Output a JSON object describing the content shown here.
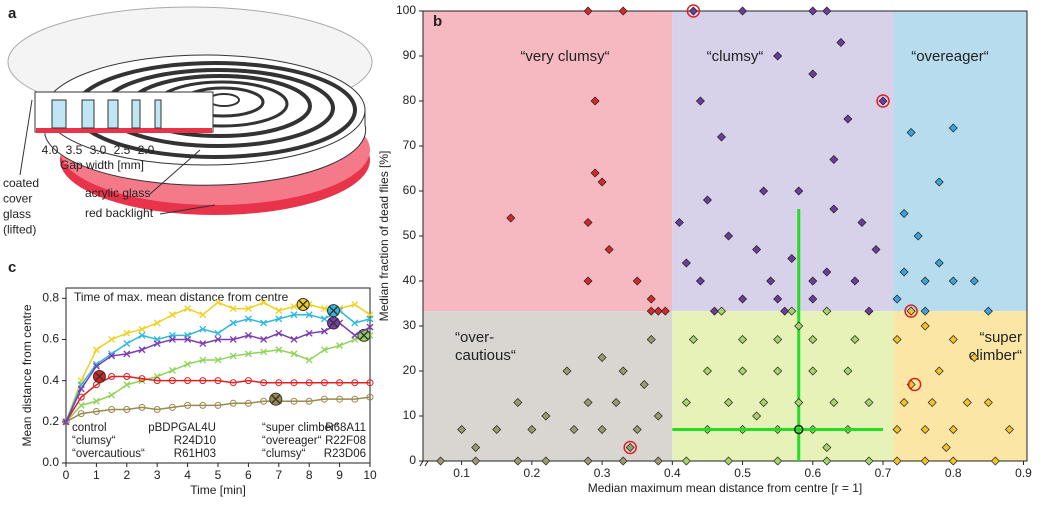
{
  "panel_a": {
    "label": "a",
    "gap_labels": [
      "4.0",
      "3.5",
      "3.0",
      "2.5",
      "2.0"
    ],
    "gap_axis": "Gap width [mm]",
    "cover_label": [
      "coated",
      "cover",
      "glass",
      "(lifted)"
    ],
    "acrylic_label": "acrylic glass",
    "backlight_label": "red backlight"
  },
  "chart_data": [
    {
      "type": "scatter",
      "panel": "b",
      "xlabel": "Median maximum mean distance from centre [r = 1]",
      "ylabel": "Median fraction of dead flies [%]",
      "xlim": [
        0.045,
        0.905
      ],
      "ylim": [
        0,
        100
      ],
      "xticks": [
        0.1,
        0.2,
        0.3,
        0.4,
        0.5,
        0.6,
        0.7,
        0.8,
        0.9
      ],
      "yticks": [
        0,
        10,
        20,
        30,
        40,
        50,
        60,
        70,
        80,
        90,
        100
      ],
      "regions": [
        {
          "label": [
            "“very clumsy“"
          ],
          "x": [
            0.045,
            0.4
          ],
          "y": [
            33.3,
            100
          ],
          "color": "#f6b9c1"
        },
        {
          "label": [
            "“clumsy“"
          ],
          "x": [
            0.4,
            0.715
          ],
          "y": [
            33.3,
            100
          ],
          "color": "#d7d1ea"
        },
        {
          "label": [
            "“overeager“"
          ],
          "x": [
            0.715,
            0.905
          ],
          "y": [
            33.3,
            100
          ],
          "color": "#b6dcee"
        },
        {
          "label": [
            "“over-",
            "cautious“"
          ],
          "x": [
            0.045,
            0.4
          ],
          "y": [
            0,
            33.3
          ],
          "color": "#d9d6d2"
        },
        {
          "label": [],
          "x": [
            0.4,
            0.715
          ],
          "y": [
            0,
            33.3
          ],
          "color": "#e6f2b8"
        },
        {
          "label": [
            "“super",
            "climber“"
          ],
          "x": [
            0.715,
            0.905
          ],
          "y": [
            0,
            33.3
          ],
          "color": "#fbe6a6"
        }
      ],
      "series": [
        {
          "color": "#d62728",
          "x": [
            0.17,
            0.28,
            0.33,
            0.29,
            0.29,
            0.28,
            0.28,
            0.3,
            0.31,
            0.35,
            0.37,
            0.38,
            0.39,
            0.37
          ],
          "values": [
            54,
            100,
            100,
            80,
            64,
            53,
            40,
            62,
            47,
            40,
            36,
            33.3,
            33.3,
            33.3
          ]
        },
        {
          "color": "#6a3d9a",
          "x": [
            0.43,
            0.44,
            0.5,
            0.6,
            0.62,
            0.64,
            0.55,
            0.6,
            0.7,
            0.65,
            0.47,
            0.63,
            0.58,
            0.53,
            0.45,
            0.41,
            0.48,
            0.52,
            0.57,
            0.62,
            0.66,
            0.44,
            0.5,
            0.55,
            0.6,
            0.68,
            0.46,
            0.56,
            0.63,
            0.69,
            0.42,
            0.54,
            0.6,
            0.67
          ],
          "values": [
            100,
            80,
            100,
            100,
            100,
            93,
            90,
            86,
            80,
            76,
            72,
            67,
            60,
            60,
            58,
            53,
            50,
            47,
            45,
            42,
            40,
            40,
            36,
            36,
            36,
            33.3,
            33.3,
            33.3,
            56,
            47,
            44,
            40,
            40,
            53
          ]
        },
        {
          "color": "#3ba3d9",
          "x": [
            0.74,
            0.8,
            0.73,
            0.75,
            0.78,
            0.73,
            0.76,
            0.8,
            0.83,
            0.72,
            0.74,
            0.76,
            0.78,
            0.85
          ],
          "values": [
            73,
            74,
            55,
            50,
            44,
            42,
            40,
            40,
            40,
            36,
            33.3,
            33.3,
            62,
            33.3
          ]
        },
        {
          "color": "#9c9a6c",
          "x": [
            0.07,
            0.12,
            0.18,
            0.22,
            0.28,
            0.33,
            0.38,
            0.1,
            0.15,
            0.2,
            0.26,
            0.3,
            0.35,
            0.22,
            0.28,
            0.32,
            0.36,
            0.25,
            0.33,
            0.37,
            0.34,
            0.12,
            0.3,
            0.38,
            0.18
          ],
          "values": [
            0,
            0,
            0,
            0,
            0,
            0,
            0,
            7,
            7,
            7,
            7,
            7,
            7,
            10,
            13,
            13,
            17,
            20,
            20,
            27,
            3,
            3,
            23,
            10,
            13
          ]
        },
        {
          "color": "#a6d46c",
          "x": [
            0.42,
            0.48,
            0.55,
            0.62,
            0.68,
            0.45,
            0.5,
            0.55,
            0.6,
            0.65,
            0.42,
            0.48,
            0.53,
            0.58,
            0.63,
            0.68,
            0.45,
            0.5,
            0.55,
            0.6,
            0.65,
            0.5,
            0.55,
            0.6,
            0.66,
            0.47,
            0.57,
            0.62,
            0.52,
            0.62,
            0.43,
            0.58
          ],
          "values": [
            0,
            0,
            0,
            0,
            0,
            7,
            7,
            7,
            7,
            7,
            13,
            13,
            13,
            13,
            13,
            13,
            20,
            20,
            20,
            20,
            20,
            27,
            27,
            27,
            27,
            33.3,
            33.3,
            33.3,
            10,
            3,
            27,
            30
          ]
        },
        {
          "color": "#f2c12e",
          "x": [
            0.72,
            0.76,
            0.8,
            0.86,
            0.72,
            0.76,
            0.8,
            0.73,
            0.77,
            0.82,
            0.74,
            0.78,
            0.83,
            0.72,
            0.76,
            0.8,
            0.85,
            0.88,
            0.74,
            0.79
          ],
          "values": [
            0,
            0,
            0,
            0,
            7,
            7,
            7,
            13,
            13,
            13,
            17,
            20,
            23,
            27,
            30,
            27,
            13,
            7,
            33.3,
            3
          ]
        }
      ],
      "highlighted": {
        "color": "#e02020",
        "x": [
          0.43,
          0.7,
          0.74,
          0.745,
          0.34
        ],
        "values": [
          100,
          80,
          33.3,
          17,
          3
        ]
      },
      "median": {
        "color": "#22dd22",
        "x": 0.58,
        "y": 7,
        "x_span": [
          0.4,
          0.7
        ],
        "y_span": [
          0,
          56
        ]
      }
    },
    {
      "type": "line",
      "panel": "c",
      "title": "Time of max. mean distance from centre",
      "xlabel": "Time [min]",
      "ylabel": "Mean distance from centre",
      "xlim": [
        0,
        10
      ],
      "ylim": [
        0,
        0.85
      ],
      "xticks": [
        0,
        1,
        2,
        3,
        4,
        5,
        6,
        7,
        8,
        9,
        10
      ],
      "yticks": [
        {
          "value": 0,
          "label": "0.0"
        },
        0.2,
        0.4,
        0.6,
        0.8
      ],
      "x": [
        0,
        0.5,
        1,
        1.5,
        2,
        2.5,
        3,
        3.5,
        4,
        4.5,
        5,
        5.5,
        6,
        6.5,
        7,
        7.5,
        8,
        8.5,
        9,
        9.5,
        10
      ],
      "series": [
        {
          "name": "control",
          "line": "pBDPGAL4U",
          "color": "#8fd35a",
          "marker": "x",
          "peak": [
            9.8,
            0.62
          ],
          "values": [
            0.2,
            0.28,
            0.3,
            0.33,
            0.38,
            0.4,
            0.42,
            0.45,
            0.48,
            0.5,
            0.5,
            0.52,
            0.53,
            0.54,
            0.55,
            0.53,
            0.5,
            0.55,
            0.57,
            0.6,
            0.62
          ]
        },
        {
          "name": "“clumsy“",
          "line": "R24D10",
          "color": "#e02020",
          "marker": "o",
          "peak": [
            1.1,
            0.42
          ],
          "values": [
            0.2,
            0.32,
            0.38,
            0.42,
            0.42,
            0.41,
            0.4,
            0.4,
            0.4,
            0.4,
            0.4,
            0.39,
            0.4,
            0.39,
            0.39,
            0.39,
            0.39,
            0.39,
            0.39,
            0.39,
            0.39
          ]
        },
        {
          "name": "“overcautious“",
          "line": "R61H03",
          "color": "#9a8a50",
          "marker": "o",
          "peak": [
            6.9,
            0.31
          ],
          "values": [
            0.2,
            0.24,
            0.25,
            0.26,
            0.26,
            0.27,
            0.26,
            0.27,
            0.28,
            0.28,
            0.28,
            0.29,
            0.29,
            0.3,
            0.3,
            0.3,
            0.3,
            0.31,
            0.31,
            0.31,
            0.32
          ]
        },
        {
          "name": "“super climber“",
          "line": "R68A11",
          "color": "#f0d020",
          "marker": "x",
          "peak": [
            7.8,
            0.77
          ],
          "values": [
            0.2,
            0.4,
            0.55,
            0.6,
            0.63,
            0.65,
            0.68,
            0.72,
            0.75,
            0.72,
            0.78,
            0.75,
            0.75,
            0.78,
            0.74,
            0.76,
            0.77,
            0.75,
            0.75,
            0.77,
            0.72
          ]
        },
        {
          "name": "“overeager“",
          "line": "R22F08",
          "color": "#30b8e0",
          "marker": "x",
          "peak": [
            8.8,
            0.74
          ],
          "values": [
            0.2,
            0.38,
            0.48,
            0.53,
            0.58,
            0.62,
            0.6,
            0.62,
            0.62,
            0.65,
            0.63,
            0.68,
            0.7,
            0.68,
            0.7,
            0.72,
            0.72,
            0.7,
            0.74,
            0.68,
            0.7
          ]
        },
        {
          "name": "“clumsy“",
          "line": "R23D06",
          "color": "#7a3cb0",
          "marker": "x",
          "peak": [
            8.8,
            0.68
          ],
          "values": [
            0.2,
            0.36,
            0.47,
            0.52,
            0.53,
            0.55,
            0.58,
            0.6,
            0.6,
            0.58,
            0.6,
            0.6,
            0.62,
            0.6,
            0.63,
            0.6,
            0.63,
            0.64,
            0.68,
            0.62,
            0.66
          ]
        }
      ]
    }
  ]
}
